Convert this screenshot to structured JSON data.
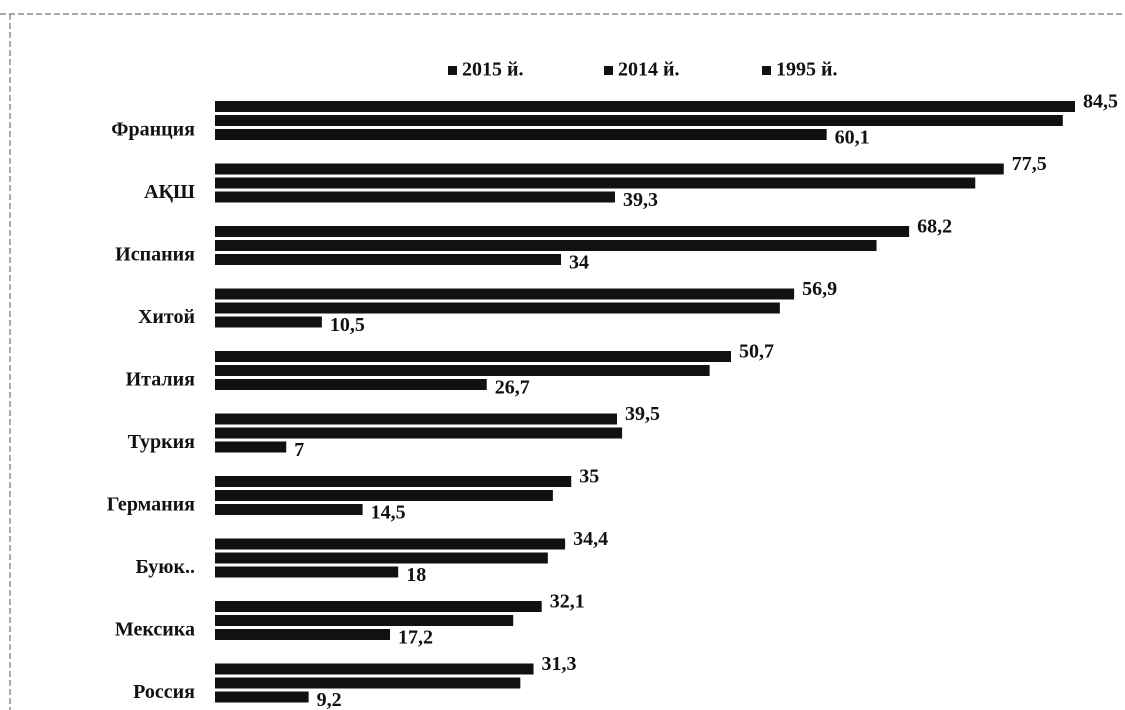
{
  "chart_data": {
    "type": "bar",
    "orientation": "horizontal",
    "categories": [
      "Франция",
      "АҚШ",
      "Испания",
      "Хитой",
      "Италия",
      "Туркия",
      "Германия",
      "Буюк..",
      "Мексика",
      "Россия"
    ],
    "series": [
      {
        "name": "2015 й.",
        "color": "#111111",
        "values": [
          84.5,
          77.5,
          68.2,
          56.9,
          50.7,
          39.5,
          35,
          34.4,
          32.1,
          31.3
        ],
        "value_labels": [
          "84,5",
          "77,5",
          "68,2",
          "56,9",
          "50,7",
          "39,5",
          "35",
          "34,4",
          "32,1",
          "31,3"
        ]
      },
      {
        "name": "2014 й.",
        "color": "#111111",
        "values": [
          83.3,
          74.7,
          65.0,
          55.5,
          48.6,
          40.0,
          33.2,
          32.7,
          29.3,
          30.0
        ]
      },
      {
        "name": "1995 й.",
        "color": "#111111",
        "values": [
          60.1,
          39.3,
          34,
          10.5,
          26.7,
          7,
          14.5,
          18,
          17.2,
          9.2
        ],
        "value_labels": [
          "60,1",
          "39,3",
          "34",
          "10,5",
          "26,7",
          "7",
          "14,5",
          "18",
          "17,2",
          "9,2"
        ]
      }
    ],
    "legend": "top"
  }
}
